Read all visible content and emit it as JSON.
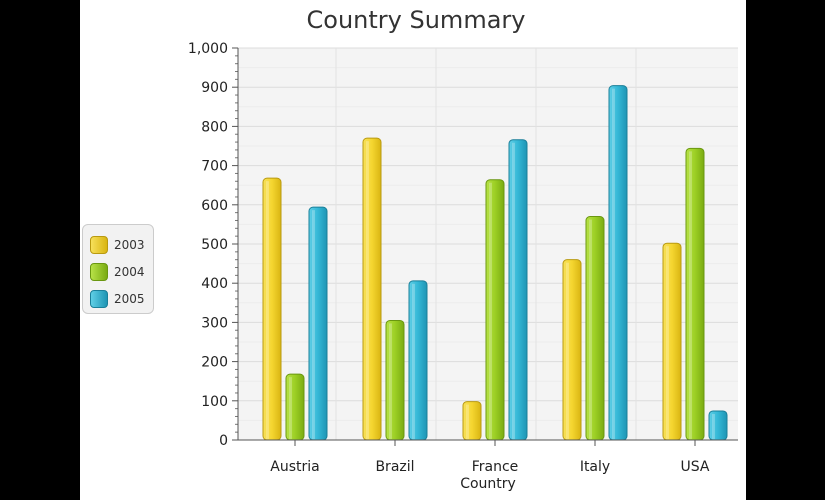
{
  "chart_data": {
    "type": "bar",
    "title": "Country Summary",
    "xlabel": "Country",
    "ylabel": "",
    "categories": [
      "Austria",
      "Brazil",
      "France",
      "Italy",
      "USA"
    ],
    "series": [
      {
        "name": "2003",
        "values": [
          668,
          770,
          98,
          460,
          502
        ],
        "color": "#f2d62c"
      },
      {
        "name": "2004",
        "values": [
          168,
          305,
          664,
          570,
          744
        ],
        "color": "#96cc1f"
      },
      {
        "name": "2005",
        "values": [
          594,
          406,
          766,
          904,
          74
        ],
        "color": "#2db5d3"
      }
    ],
    "ylim": [
      0,
      1000
    ],
    "yticks": [
      "0",
      "100",
      "200",
      "300",
      "400",
      "500",
      "600",
      "700",
      "800",
      "900",
      "1,000"
    ],
    "grid": true,
    "legend_position": "left"
  }
}
